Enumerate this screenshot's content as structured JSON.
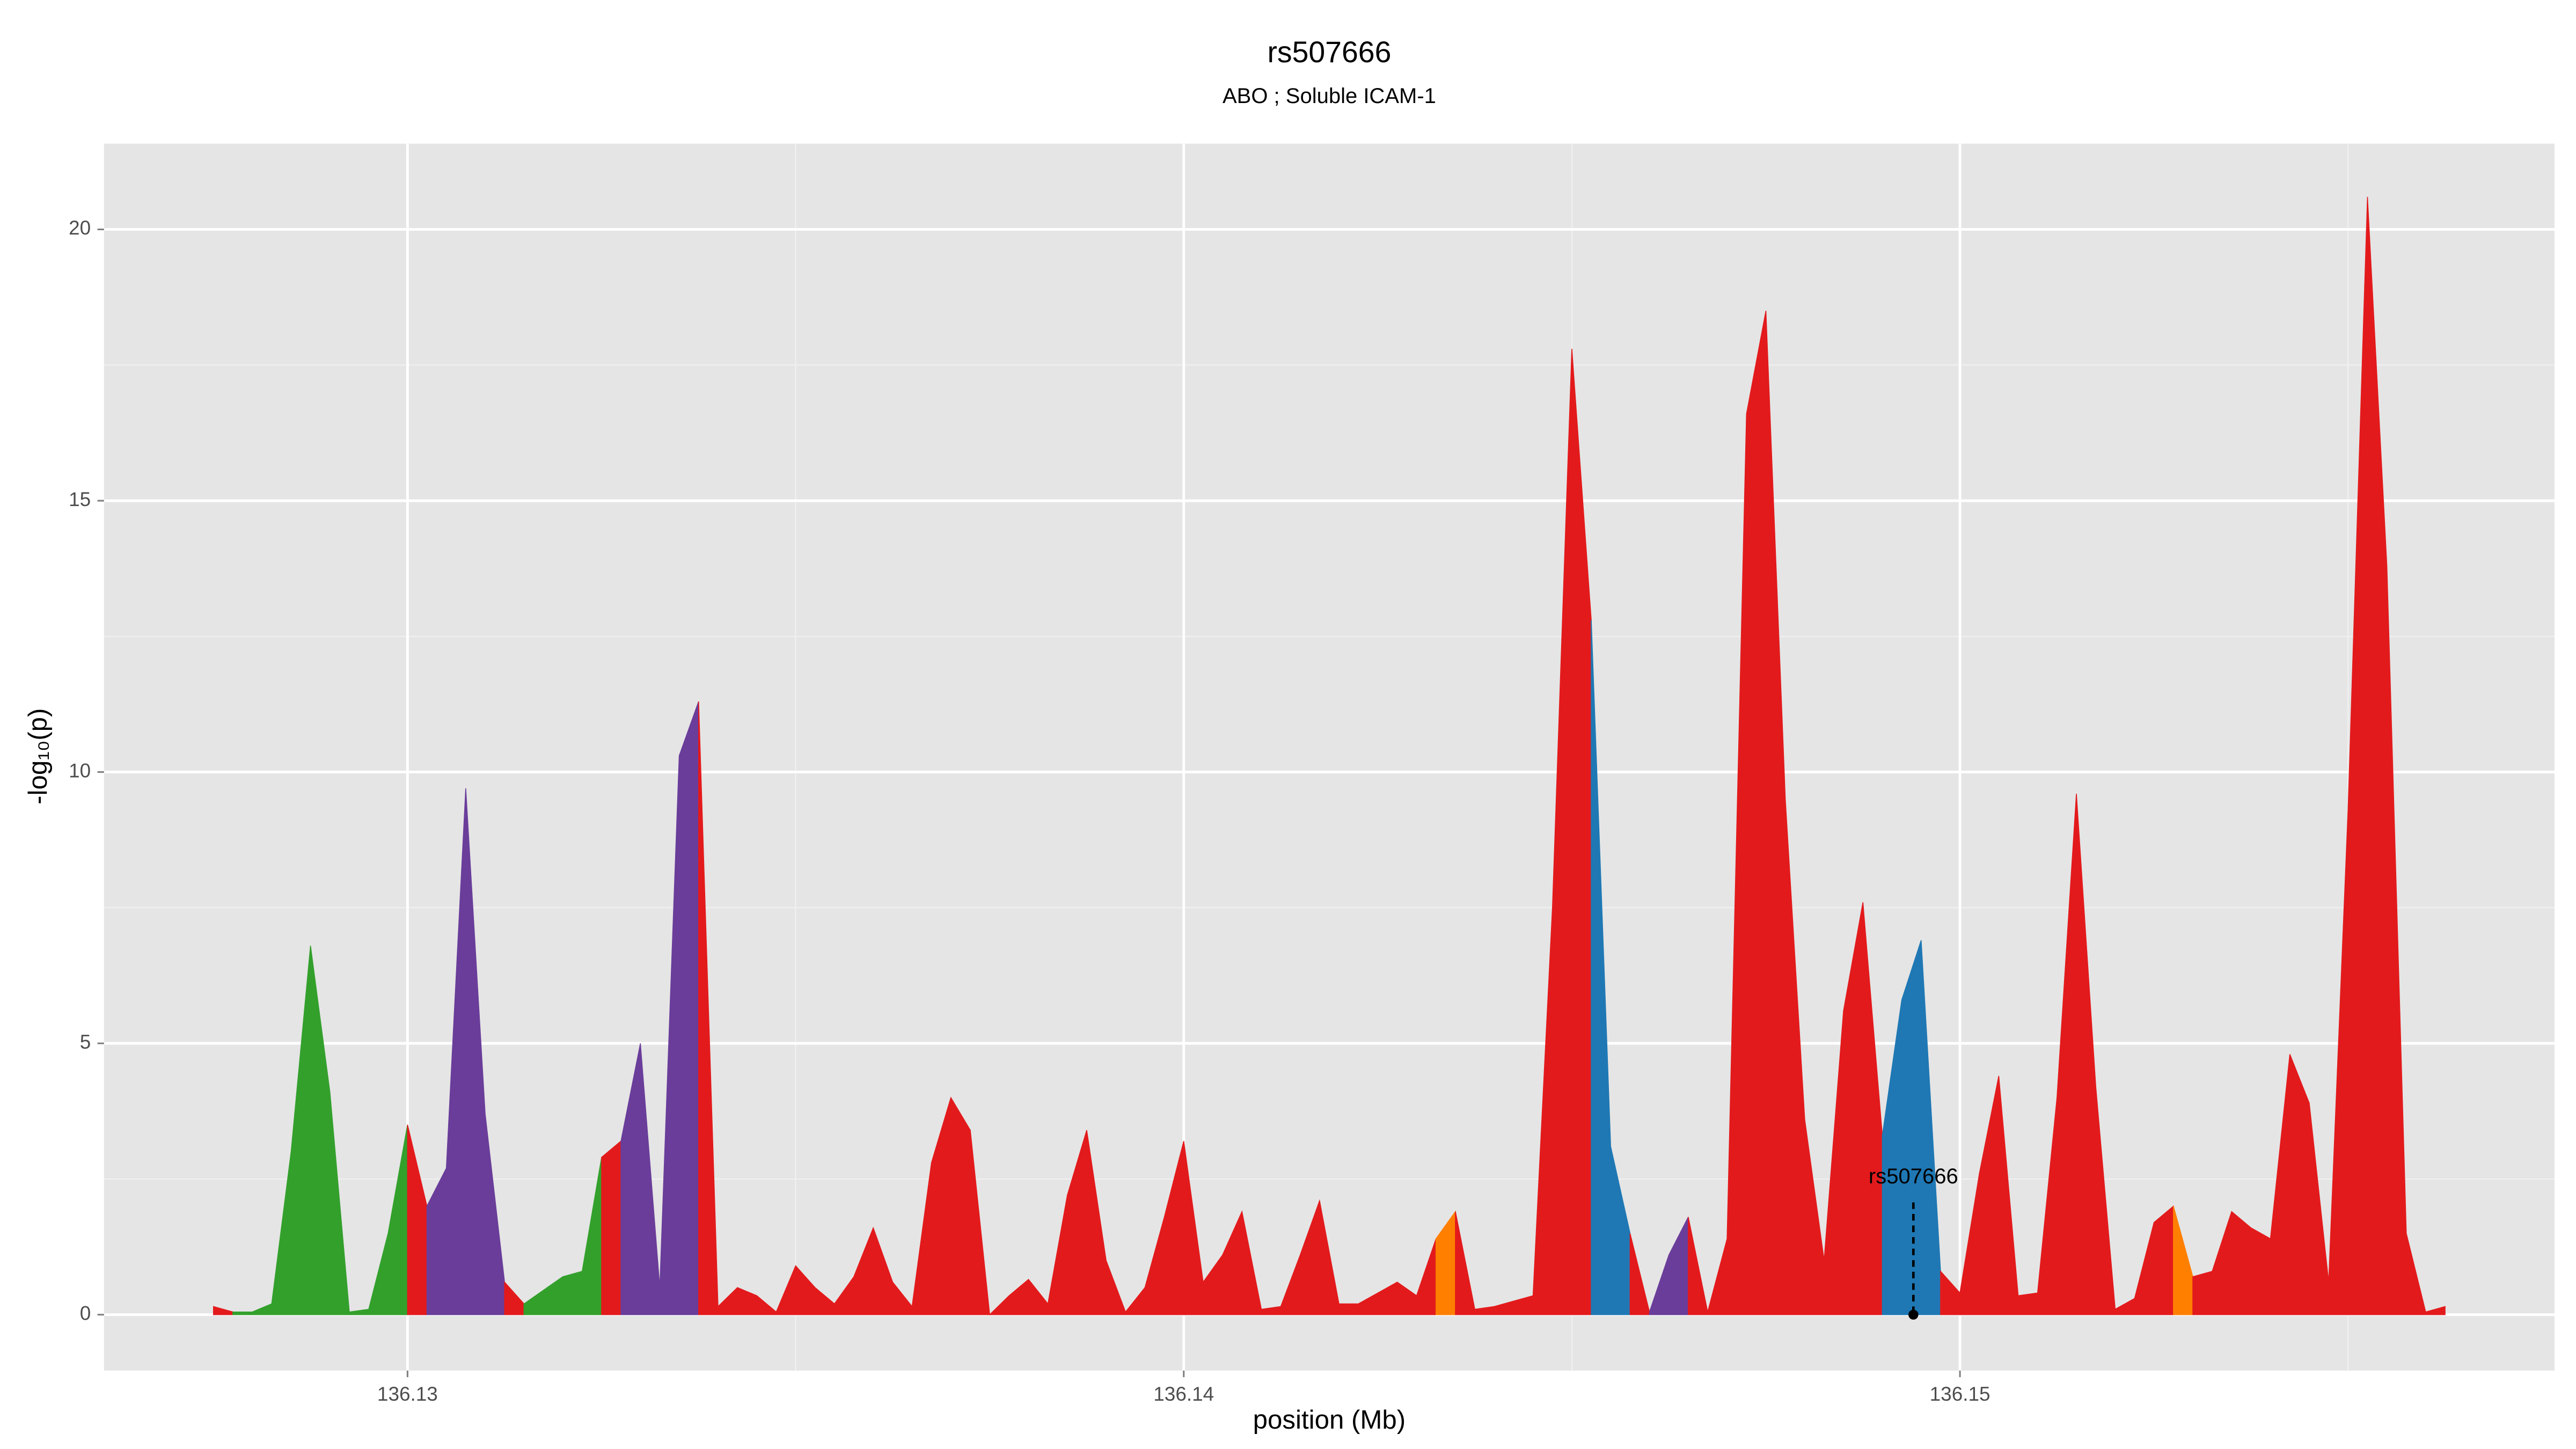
{
  "chart_data": {
    "type": "area",
    "title": "rs507666",
    "subtitle": "ABO ; Soluble ICAM-1",
    "x_label": "position (Mb)",
    "y_label": "-log₁₀(p)",
    "xlim": [
      136.12609,
      136.15766
    ],
    "ylim": [
      -1.03,
      21.58
    ],
    "xticks": [
      136.13,
      136.14,
      136.15
    ],
    "yticks": [
      0,
      5,
      10,
      15,
      20
    ],
    "grid": true,
    "series": [
      {
        "color": "#e31a1c",
        "x": [
          136.1275,
          136.12775
        ],
        "values": [
          0.15,
          0.05
        ]
      },
      {
        "color": "#33a02c",
        "x": [
          136.12775,
          136.128,
          136.12825,
          136.1285,
          136.12875,
          136.129,
          136.12925,
          136.1295,
          136.12975,
          136.13
        ],
        "values": [
          0.05,
          0.05,
          0.2,
          3.0,
          6.8,
          4.1,
          0.05,
          0.1,
          1.5,
          3.5
        ]
      },
      {
        "color": "#e31a1c",
        "x": [
          136.13,
          136.13025
        ],
        "values": [
          3.5,
          2.0
        ]
      },
      {
        "color": "#6a3d9a",
        "x": [
          136.13025,
          136.1305,
          136.13075,
          136.131,
          136.13125
        ],
        "values": [
          2.0,
          2.7,
          9.7,
          3.7,
          0.6
        ]
      },
      {
        "color": "#e31a1c",
        "x": [
          136.13125,
          136.1315
        ],
        "values": [
          0.6,
          0.2
        ]
      },
      {
        "color": "#33a02c",
        "x": [
          136.1315,
          136.13175,
          136.132,
          136.13225,
          136.1325
        ],
        "values": [
          0.2,
          0.45,
          0.7,
          0.8,
          2.9
        ]
      },
      {
        "color": "#e31a1c",
        "x": [
          136.1325,
          136.13275
        ],
        "values": [
          2.9,
          3.2
        ]
      },
      {
        "color": "#6a3d9a",
        "x": [
          136.13275,
          136.133,
          136.13325,
          136.1335,
          136.13375
        ],
        "values": [
          3.2,
          5.0,
          0.5,
          10.3,
          11.3
        ]
      },
      {
        "color": "#e31a1c",
        "x": [
          136.13375,
          136.134,
          136.13425,
          136.1345,
          136.13475,
          136.135,
          136.13525,
          136.1355,
          136.13575,
          136.136,
          136.13625,
          136.1365,
          136.13675,
          136.137,
          136.13725,
          136.1375,
          136.13775,
          136.138,
          136.13825,
          136.1385,
          136.13875,
          136.139,
          136.13925,
          136.1395,
          136.13975,
          136.14,
          136.14025,
          136.1405,
          136.14075,
          136.141,
          136.14125,
          136.1415,
          136.14175,
          136.142,
          136.14225,
          136.1425,
          136.14275,
          136.143,
          136.14325
        ],
        "values": [
          11.3,
          0.15,
          0.5,
          0.35,
          0.05,
          0.9,
          0.5,
          0.2,
          0.7,
          1.6,
          0.6,
          0.15,
          2.8,
          4.0,
          3.4,
          0.0,
          0.35,
          0.65,
          0.2,
          2.2,
          3.4,
          1.0,
          0.05,
          0.5,
          1.8,
          3.2,
          0.6,
          1.1,
          1.9,
          0.1,
          0.15,
          1.1,
          2.1,
          0.2,
          0.2,
          0.4,
          0.6,
          0.35,
          1.4
        ]
      },
      {
        "color": "#ff7f00",
        "x": [
          136.14325,
          136.1435
        ],
        "values": [
          1.4,
          1.9
        ]
      },
      {
        "color": "#e31a1c",
        "x": [
          136.1435,
          136.14375,
          136.144,
          136.14425,
          136.1445,
          136.14475,
          136.145,
          136.14525
        ],
        "values": [
          1.9,
          0.1,
          0.15,
          0.25,
          0.35,
          7.5,
          17.8,
          12.8
        ]
      },
      {
        "color": "#1f78b4",
        "x": [
          136.14525,
          136.1455,
          136.14575
        ],
        "values": [
          12.8,
          3.1,
          1.5
        ]
      },
      {
        "color": "#e31a1c",
        "x": [
          136.14575,
          136.146
        ],
        "values": [
          1.5,
          0.05
        ]
      },
      {
        "color": "#6a3d9a",
        "x": [
          136.146,
          136.14625,
          136.1465
        ],
        "values": [
          0.05,
          1.1,
          1.8
        ]
      },
      {
        "color": "#e31a1c",
        "x": [
          136.1465,
          136.14675,
          136.147,
          136.14725,
          136.1475,
          136.14775,
          136.148,
          136.14825,
          136.1485,
          136.14875,
          136.149
        ],
        "values": [
          1.8,
          0.05,
          1.4,
          16.6,
          18.5,
          9.5,
          3.6,
          1.0,
          5.6,
          7.6,
          3.3
        ]
      },
      {
        "color": "#1f78b4",
        "x": [
          136.149,
          136.14925,
          136.1495,
          136.14975
        ],
        "values": [
          3.3,
          5.8,
          6.9,
          0.8
        ]
      },
      {
        "color": "#e31a1c",
        "x": [
          136.14975,
          136.15,
          136.15025,
          136.1505,
          136.15075,
          136.151,
          136.15125,
          136.1515,
          136.15175,
          136.152,
          136.15225,
          136.1525,
          136.15275
        ],
        "values": [
          0.8,
          0.4,
          2.6,
          4.4,
          0.35,
          0.4,
          4.0,
          9.6,
          4.2,
          0.1,
          0.3,
          1.7,
          2.0
        ]
      },
      {
        "color": "#ff7f00",
        "x": [
          136.15275,
          136.153
        ],
        "values": [
          2.0,
          0.7
        ]
      },
      {
        "color": "#e31a1c",
        "x": [
          136.153,
          136.15325,
          136.1535,
          136.15375,
          136.154,
          136.15425,
          136.1545,
          136.15475,
          136.155,
          136.15525,
          136.1555,
          136.15575,
          136.156,
          136.15625
        ],
        "values": [
          0.7,
          0.8,
          1.9,
          1.6,
          1.4,
          4.8,
          3.9,
          0.6,
          9.3,
          20.6,
          13.8,
          1.5,
          0.05,
          0.15
        ]
      }
    ],
    "annotations": [
      {
        "text": "rs507666",
        "x": 136.1494,
        "y": 0
      }
    ]
  }
}
